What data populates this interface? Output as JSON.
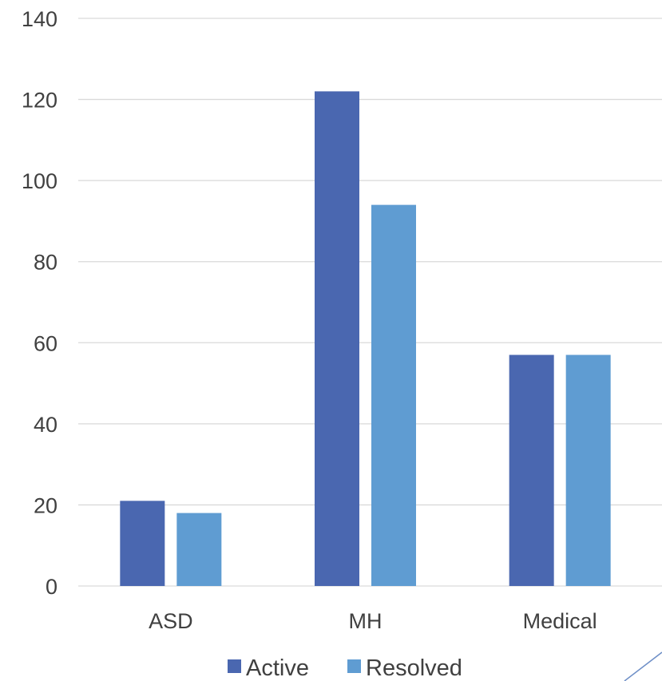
{
  "chart_data": {
    "type": "bar",
    "categories": [
      "ASD",
      "MH",
      "Medical"
    ],
    "series": [
      {
        "name": "Active",
        "values": [
          21,
          122,
          57
        ],
        "color": "#4a67b0"
      },
      {
        "name": "Resolved",
        "values": [
          18,
          94,
          57
        ],
        "color": "#5f9cd2"
      }
    ],
    "ylim": [
      0,
      140
    ],
    "yticks": [
      0,
      20,
      40,
      60,
      80,
      100,
      120,
      140
    ],
    "grid": true,
    "legend_position": "bottom"
  }
}
